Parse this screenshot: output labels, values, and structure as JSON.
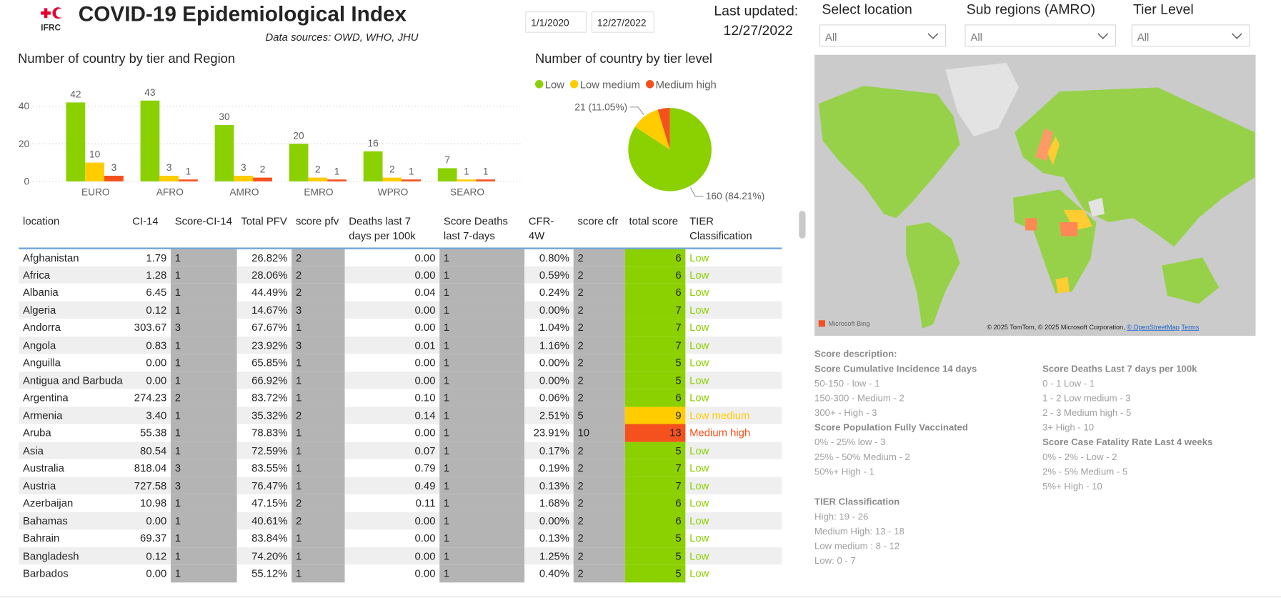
{
  "header": {
    "logo": "IFRC",
    "title": "COVID-19 Epidemiological Index",
    "subtitle": "Data sources: OWD, WHO, JHU",
    "start_date": "1/1/2020",
    "end_date": "12/27/2022",
    "last_updated_label": "Last updated:",
    "last_updated": "12/27/2022"
  },
  "filters": [
    {
      "label": "Select location",
      "value": "All"
    },
    {
      "label": "Sub regions (AMRO)",
      "value": "All"
    },
    {
      "label": "Tier Level",
      "value": "All"
    }
  ],
  "chart_data": [
    {
      "type": "bar",
      "title": "Number of country by tier and Region",
      "categories": [
        "EURO",
        "AFRO",
        "AMRO",
        "EMRO",
        "WPRO",
        "SEARO"
      ],
      "series": [
        {
          "color": "#8bd000",
          "values": [
            42,
            43,
            30,
            20,
            16,
            7
          ]
        },
        {
          "color": "#ffcc00",
          "values": [
            10,
            3,
            3,
            2,
            2,
            1
          ]
        },
        {
          "color": "#f5511e",
          "values": [
            3,
            1,
            2,
            1,
            1,
            1
          ]
        }
      ],
      "ylim": [
        0,
        50
      ],
      "yticks": [
        0,
        20,
        40
      ],
      "grid": true
    },
    {
      "type": "pie",
      "title": "Number of country by tier level",
      "categories": [
        "Low",
        "Low medium",
        "Medium high"
      ],
      "values": [
        160,
        21,
        9
      ],
      "value_labels": [
        "160 (84.21%)",
        "21 (11.05%)",
        null
      ],
      "colors": [
        "#8bd000",
        "#ffcc00",
        "#f5511e"
      ],
      "legend": "top"
    }
  ],
  "table": {
    "columns": [
      "location",
      "CI-14",
      "Score-CI-14",
      "Total PFV",
      "score pfv",
      "Deaths last 7 days per 100k",
      "Score Deaths last 7-days",
      "CFR-4W",
      "score cfr",
      "total score",
      "TIER Classification"
    ],
    "rows": [
      [
        "Afghanistan",
        "1.79",
        "1",
        "26.82%",
        "2",
        "0.00",
        "1",
        "0.80%",
        "2",
        "6",
        "Low"
      ],
      [
        "Africa",
        "1.28",
        "1",
        "28.06%",
        "2",
        "0.00",
        "1",
        "0.59%",
        "2",
        "6",
        "Low"
      ],
      [
        "Albania",
        "6.45",
        "1",
        "44.49%",
        "2",
        "0.04",
        "1",
        "0.24%",
        "2",
        "6",
        "Low"
      ],
      [
        "Algeria",
        "0.12",
        "1",
        "14.67%",
        "3",
        "0.00",
        "1",
        "0.00%",
        "2",
        "7",
        "Low"
      ],
      [
        "Andorra",
        "303.67",
        "3",
        "67.67%",
        "1",
        "0.00",
        "1",
        "1.04%",
        "2",
        "7",
        "Low"
      ],
      [
        "Angola",
        "0.83",
        "1",
        "23.92%",
        "3",
        "0.01",
        "1",
        "1.16%",
        "2",
        "7",
        "Low"
      ],
      [
        "Anguilla",
        "0.00",
        "1",
        "65.85%",
        "1",
        "0.00",
        "1",
        "0.00%",
        "2",
        "5",
        "Low"
      ],
      [
        "Antigua and Barbuda",
        "0.00",
        "1",
        "66.92%",
        "1",
        "0.00",
        "1",
        "0.00%",
        "2",
        "5",
        "Low"
      ],
      [
        "Argentina",
        "274.23",
        "2",
        "83.72%",
        "1",
        "0.10",
        "1",
        "0.06%",
        "2",
        "6",
        "Low"
      ],
      [
        "Armenia",
        "3.40",
        "1",
        "35.32%",
        "2",
        "0.14",
        "1",
        "2.51%",
        "5",
        "9",
        "Low medium"
      ],
      [
        "Aruba",
        "55.38",
        "1",
        "78.83%",
        "1",
        "0.00",
        "1",
        "23.91%",
        "10",
        "13",
        "Medium high"
      ],
      [
        "Asia",
        "80.54",
        "1",
        "72.59%",
        "1",
        "0.07",
        "1",
        "0.17%",
        "2",
        "5",
        "Low"
      ],
      [
        "Australia",
        "818.04",
        "3",
        "83.55%",
        "1",
        "0.79",
        "1",
        "0.19%",
        "2",
        "7",
        "Low"
      ],
      [
        "Austria",
        "727.58",
        "3",
        "76.47%",
        "1",
        "0.49",
        "1",
        "0.13%",
        "2",
        "7",
        "Low"
      ],
      [
        "Azerbaijan",
        "10.98",
        "1",
        "47.15%",
        "2",
        "0.11",
        "1",
        "1.68%",
        "2",
        "6",
        "Low"
      ],
      [
        "Bahamas",
        "0.00",
        "1",
        "40.61%",
        "2",
        "0.00",
        "1",
        "0.00%",
        "2",
        "6",
        "Low"
      ],
      [
        "Bahrain",
        "69.37",
        "1",
        "83.84%",
        "1",
        "0.00",
        "1",
        "0.13%",
        "2",
        "5",
        "Low"
      ],
      [
        "Bangladesh",
        "0.12",
        "1",
        "74.20%",
        "1",
        "0.00",
        "1",
        "1.25%",
        "2",
        "5",
        "Low"
      ],
      [
        "Barbados",
        "0.00",
        "1",
        "55.12%",
        "1",
        "0.00",
        "1",
        "0.40%",
        "2",
        "5",
        "Low"
      ]
    ]
  },
  "map": {
    "provider": "Microsoft Bing",
    "attribution": "© 2025 TomTom, © 2025 Microsoft Corporation,",
    "osm_link": "© OpenStreetMap",
    "terms_link": "Terms"
  },
  "score_description": {
    "title": "Score description:",
    "columns": [
      [
        {
          "heading": "Score Cumulative Incidence 14 days",
          "items": [
            "50-150 - low - 1",
            "150-300 - Medium - 2",
            "300+ - High - 3"
          ]
        },
        {
          "heading": "Score Population Fully Vaccinated",
          "items": [
            "0% - 25% low - 3",
            "25% - 50% Medium - 2",
            "50%+ High - 1"
          ]
        },
        {
          "heading": "TIER Classification",
          "items": [
            "High: 19 - 26",
            "Medium High: 13 - 18",
            "Low medium : 8 - 12",
            "Low: 0 - 7"
          ]
        }
      ],
      [
        {
          "heading": "Score Deaths Last 7 days per 100k",
          "items": [
            "0 - 1 Low - 1",
            "1 - 2  Low medium - 3",
            "2 - 3 Medium high - 5",
            "3+  High - 10"
          ]
        },
        {
          "heading": "Score Case Fatality Rate Last 4 weeks",
          "items": [
            "0% - 2% - Low - 2",
            "2% - 5% Medium - 5",
            "5%+  High - 10"
          ]
        }
      ]
    ]
  }
}
